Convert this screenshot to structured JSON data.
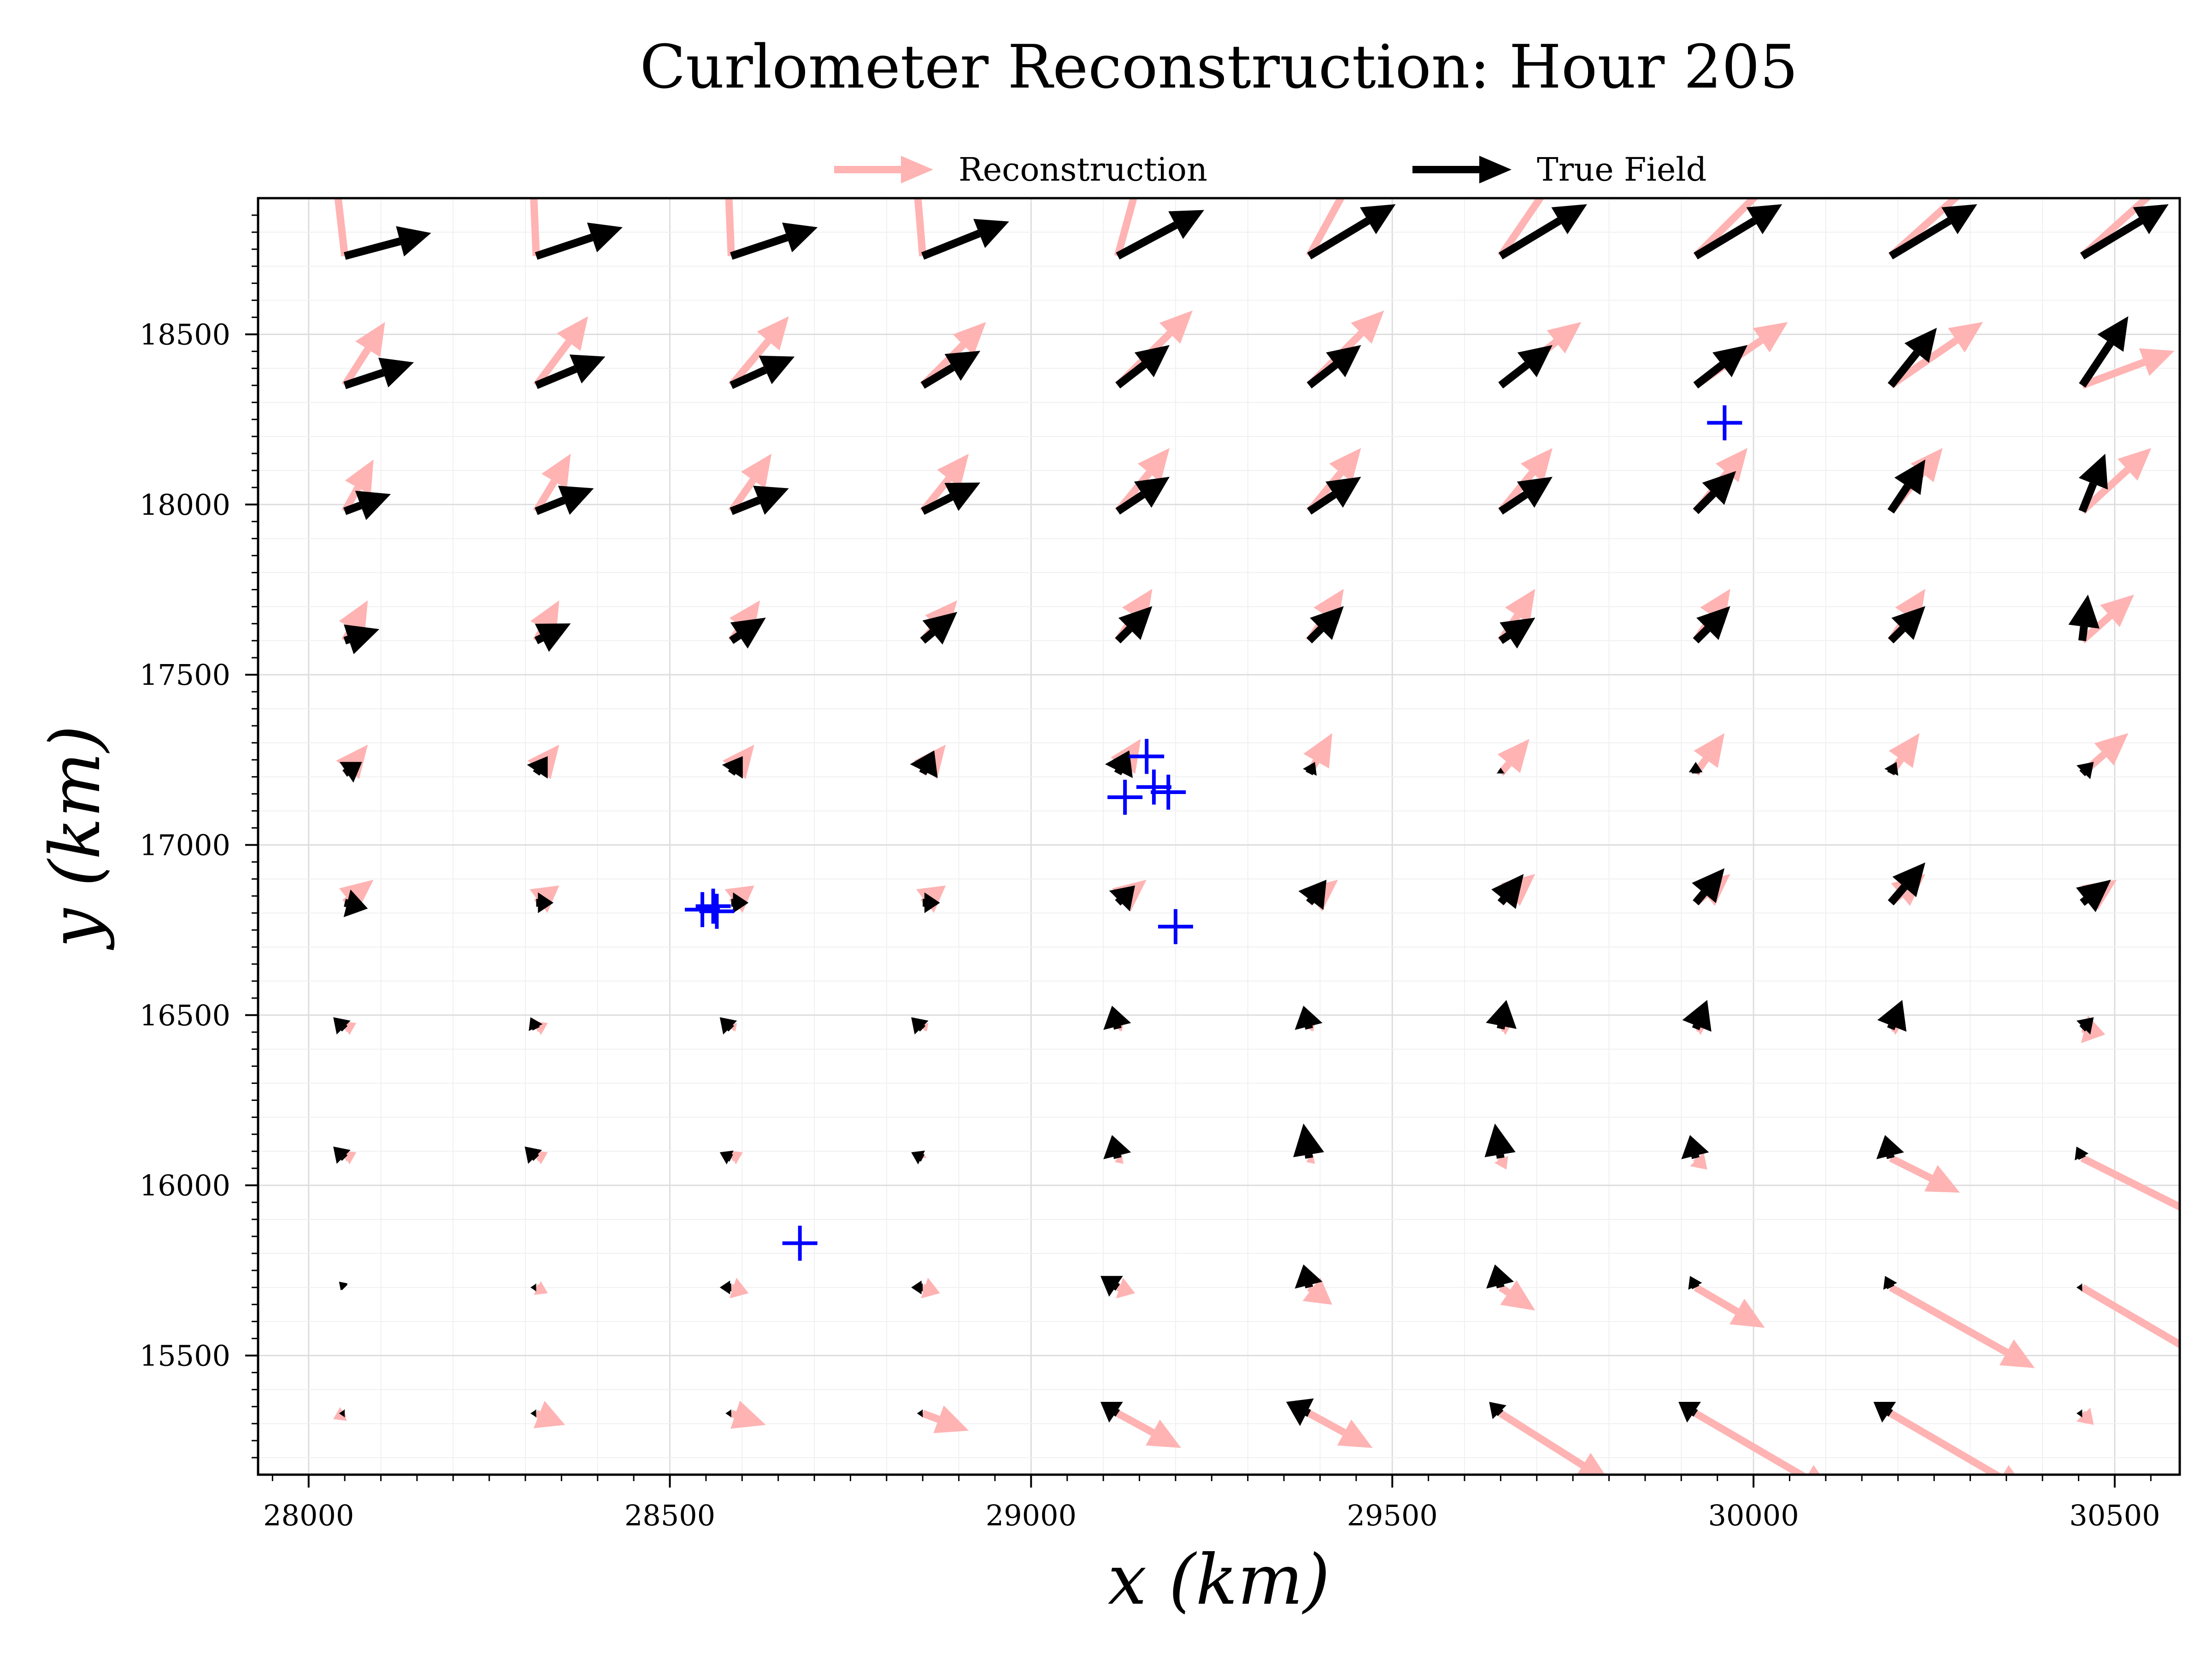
{
  "chart_data": {
    "type": "quiver",
    "title": "Curlometer Reconstruction: Hour 205",
    "xlabel": "x (km)",
    "ylabel": "y (km)",
    "xlim": [
      27930,
      30590
    ],
    "ylim": [
      15150,
      18900
    ],
    "x_ticks": [
      28000,
      28500,
      29000,
      29500,
      30000,
      30500
    ],
    "y_ticks": [
      15500,
      16000,
      16500,
      17000,
      17500,
      18000,
      18500
    ],
    "grid": true,
    "legend_position": "top-center",
    "legend": [
      {
        "label": "Reconstruction",
        "color": "#ffb3b3"
      },
      {
        "label": "True Field",
        "color": "#000000"
      }
    ],
    "grid_x": [
      28050,
      28315,
      28585,
      28850,
      29120,
      29385,
      29650,
      29920,
      30190,
      30455
    ],
    "grid_y": [
      15330,
      15700,
      16080,
      16460,
      16830,
      17210,
      17600,
      17980,
      18350,
      18730
    ],
    "series": [
      {
        "name": "Reconstruction",
        "color": "#ffb3b3",
        "u_rows": [
          [
            -0.1,
            0.25,
            0.3,
            0.4,
            0.55,
            0.55,
            0.95,
            1.2,
            1.2,
            0.1
          ],
          [
            -0.05,
            0.1,
            0.15,
            0.15,
            0.15,
            0.2,
            0.3,
            0.6,
            1.25,
            1.2
          ],
          [
            0.1,
            0.1,
            0.1,
            0.0,
            0.05,
            0.05,
            0.05,
            0.1,
            0.6,
            1.2
          ],
          [
            0.1,
            0.1,
            0.05,
            0.05,
            0.05,
            0.05,
            0.1,
            0.1,
            0.1,
            0.2
          ],
          [
            0.25,
            0.2,
            0.2,
            0.2,
            0.25,
            0.25,
            0.3,
            0.3,
            0.3,
            0.3
          ],
          [
            0.2,
            0.2,
            0.2,
            0.2,
            0.2,
            0.2,
            0.25,
            0.25,
            0.25,
            0.4
          ],
          [
            0.2,
            0.2,
            0.25,
            0.3,
            0.3,
            0.3,
            0.3,
            0.3,
            0.3,
            0.45
          ],
          [
            0.25,
            0.3,
            0.35,
            0.4,
            0.45,
            0.45,
            0.45,
            0.45,
            0.45,
            0.6
          ],
          [
            0.35,
            0.45,
            0.5,
            0.55,
            0.65,
            0.65,
            0.7,
            0.8,
            0.8,
            0.8
          ],
          [
            -0.15,
            -0.05,
            -0.05,
            -0.1,
            0.3,
            0.6,
            0.75,
            0.9,
            1.0,
            1.0
          ]
        ],
        "v_rows": [
          [
            -0.05,
            -0.1,
            -0.1,
            -0.15,
            -0.3,
            -0.3,
            -0.6,
            -0.7,
            -0.7,
            -0.1
          ],
          [
            0.05,
            -0.05,
            -0.05,
            -0.05,
            -0.05,
            -0.15,
            -0.2,
            -0.35,
            -0.7,
            -0.7
          ],
          [
            0.05,
            0.05,
            0.05,
            0.05,
            -0.05,
            -0.05,
            -0.1,
            -0.1,
            -0.3,
            -0.6
          ],
          [
            0.05,
            0.05,
            0.05,
            0.05,
            0.05,
            0.05,
            0.05,
            0.05,
            0.05,
            -0.05
          ],
          [
            0.2,
            0.15,
            0.15,
            0.15,
            0.2,
            0.2,
            0.25,
            0.25,
            0.25,
            0.2
          ],
          [
            0.25,
            0.25,
            0.25,
            0.25,
            0.3,
            0.35,
            0.3,
            0.35,
            0.35,
            0.35
          ],
          [
            0.35,
            0.35,
            0.35,
            0.35,
            0.45,
            0.45,
            0.45,
            0.45,
            0.45,
            0.4
          ],
          [
            0.45,
            0.5,
            0.5,
            0.5,
            0.55,
            0.55,
            0.55,
            0.55,
            0.55,
            0.55
          ],
          [
            0.55,
            0.6,
            0.6,
            0.55,
            0.65,
            0.65,
            0.55,
            0.55,
            0.55,
            0.3
          ],
          [
            1.3,
            1.2,
            1.2,
            1.2,
            1.1,
            1.1,
            1.1,
            0.9,
            0.9,
            0.9
          ]
        ]
      },
      {
        "name": "True Field",
        "color": "#000000",
        "u_rows": [
          [
            -0.05,
            -0.05,
            -0.05,
            -0.05,
            -0.15,
            -0.2,
            -0.1,
            -0.15,
            -0.15,
            -0.05
          ],
          [
            -0.05,
            -0.05,
            -0.1,
            -0.1,
            -0.15,
            -0.05,
            -0.05,
            -0.05,
            -0.05,
            -0.05
          ],
          [
            -0.1,
            -0.1,
            -0.1,
            -0.1,
            -0.05,
            -0.05,
            -0.05,
            -0.05,
            -0.05,
            -0.05
          ],
          [
            -0.1,
            -0.05,
            -0.1,
            -0.1,
            -0.05,
            -0.05,
            0.05,
            0.1,
            0.1,
            0.1
          ],
          [
            0.2,
            0.15,
            0.15,
            0.15,
            0.15,
            0.15,
            0.2,
            0.25,
            0.3,
            0.25
          ],
          [
            0.15,
            0.1,
            0.1,
            0.1,
            0.1,
            0.05,
            0.0,
            0.0,
            0.05,
            0.1
          ],
          [
            0.3,
            0.3,
            0.3,
            0.3,
            0.3,
            0.3,
            0.3,
            0.3,
            0.3,
            0.05
          ],
          [
            0.4,
            0.5,
            0.5,
            0.5,
            0.45,
            0.45,
            0.45,
            0.35,
            0.3,
            0.2
          ],
          [
            0.6,
            0.6,
            0.55,
            0.5,
            0.45,
            0.45,
            0.45,
            0.45,
            0.4,
            0.4
          ],
          [
            0.75,
            0.75,
            0.75,
            0.75,
            0.75,
            0.75,
            0.75,
            0.75,
            0.75,
            0.75
          ]
        ],
        "v_rows": [
          [
            0.0,
            0.0,
            0.0,
            0.0,
            0.1,
            0.1,
            0.1,
            0.1,
            0.1,
            0.0
          ],
          [
            0.05,
            0.0,
            0.0,
            0.0,
            0.1,
            0.2,
            0.2,
            0.1,
            0.1,
            0.0
          ],
          [
            0.1,
            0.1,
            0.05,
            0.05,
            0.2,
            0.3,
            0.3,
            0.2,
            0.2,
            0.1
          ],
          [
            0.1,
            0.1,
            0.1,
            0.1,
            0.2,
            0.2,
            0.25,
            0.25,
            0.25,
            0.1
          ],
          [
            -0.05,
            0.0,
            0.0,
            0.0,
            0.15,
            0.2,
            0.25,
            0.3,
            0.35,
            0.2
          ],
          [
            0.1,
            0.15,
            0.15,
            0.2,
            0.2,
            0.1,
            0.05,
            0.1,
            0.1,
            0.1
          ],
          [
            0.1,
            0.15,
            0.2,
            0.25,
            0.3,
            0.3,
            0.2,
            0.3,
            0.3,
            0.4
          ],
          [
            0.15,
            0.2,
            0.2,
            0.25,
            0.3,
            0.3,
            0.3,
            0.35,
            0.45,
            0.5
          ],
          [
            0.2,
            0.25,
            0.25,
            0.3,
            0.35,
            0.35,
            0.35,
            0.35,
            0.5,
            0.6
          ],
          [
            0.2,
            0.25,
            0.25,
            0.3,
            0.4,
            0.45,
            0.45,
            0.45,
            0.45,
            0.45
          ]
        ]
      }
    ],
    "spacecraft_markers": {
      "color": "#0000ff",
      "points": [
        [
          28560,
          16820
        ],
        [
          28545,
          16810
        ],
        [
          28565,
          16805
        ],
        [
          28680,
          15830
        ],
        [
          29160,
          17260
        ],
        [
          29170,
          17170
        ],
        [
          29130,
          17140
        ],
        [
          29190,
          17155
        ],
        [
          29200,
          16760
        ],
        [
          29960,
          18240
        ]
      ]
    }
  }
}
